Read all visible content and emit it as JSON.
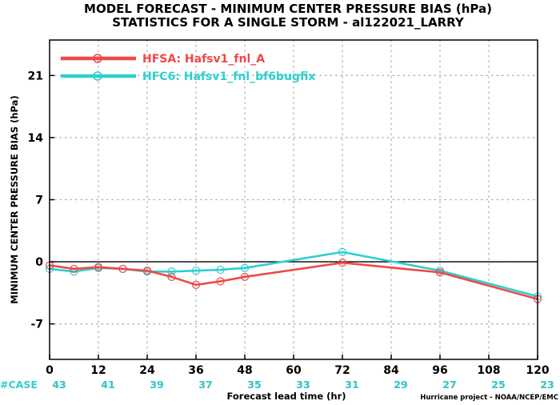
{
  "header": {
    "title_line1": "MODEL FORECAST - MINIMUM CENTER PRESSURE BIAS (hPa)",
    "title_line2": "STATISTICS FOR A SINGLE STORM - al122021_LARRY"
  },
  "footer": {
    "credit": "Hurricane project - NOAA/NCEP/EMC",
    "case_label": "#CASE"
  },
  "colors": {
    "hfsa": "#f04848",
    "hfc6": "#2ecfd0",
    "zero_line": "#000000",
    "grid": "#b0b0b0"
  },
  "chart_data": {
    "type": "line",
    "xlabel": "Forecast lead time (hr)",
    "ylabel": "MINIMUM CENTER PRESSURE BIAS (hPa)",
    "xlim": [
      0,
      120
    ],
    "ylim": [
      -11,
      25
    ],
    "xticks": [
      0,
      12,
      24,
      36,
      48,
      60,
      72,
      84,
      96,
      108,
      120
    ],
    "yticks": [
      -7,
      0,
      7,
      14,
      21
    ],
    "grid": true,
    "legend_position": "top-left",
    "series": [
      {
        "name": "HFSA: Hafsv1_fnl_A",
        "color_key": "hfsa",
        "x": [
          0,
          6,
          12,
          18,
          24,
          30,
          36,
          42,
          48,
          72,
          96,
          120
        ],
        "y": [
          -0.4,
          -0.8,
          -0.6,
          -0.8,
          -1.0,
          -1.7,
          -2.6,
          -2.2,
          -1.7,
          -0.1,
          -1.2,
          -4.2
        ]
      },
      {
        "name": "HFC6: Hafsv1_fnl_bf6bugfix",
        "color_key": "hfc6",
        "x": [
          0,
          6,
          12,
          18,
          24,
          30,
          36,
          42,
          48,
          72,
          96,
          120
        ],
        "y": [
          -0.8,
          -1.1,
          -0.7,
          -0.8,
          -1.1,
          -1.1,
          -1.0,
          -0.9,
          -0.7,
          1.1,
          -1.0,
          -3.9
        ]
      }
    ],
    "case_counts": {
      "x": [
        0,
        12,
        24,
        36,
        48,
        60,
        72,
        84,
        96,
        108,
        120
      ],
      "hfsa": [
        43,
        41,
        39,
        37,
        35,
        33,
        31,
        29,
        27,
        25,
        23
      ],
      "hfc6": [
        43,
        41,
        39,
        37,
        35,
        33,
        31,
        29,
        27,
        25,
        23
      ]
    }
  }
}
